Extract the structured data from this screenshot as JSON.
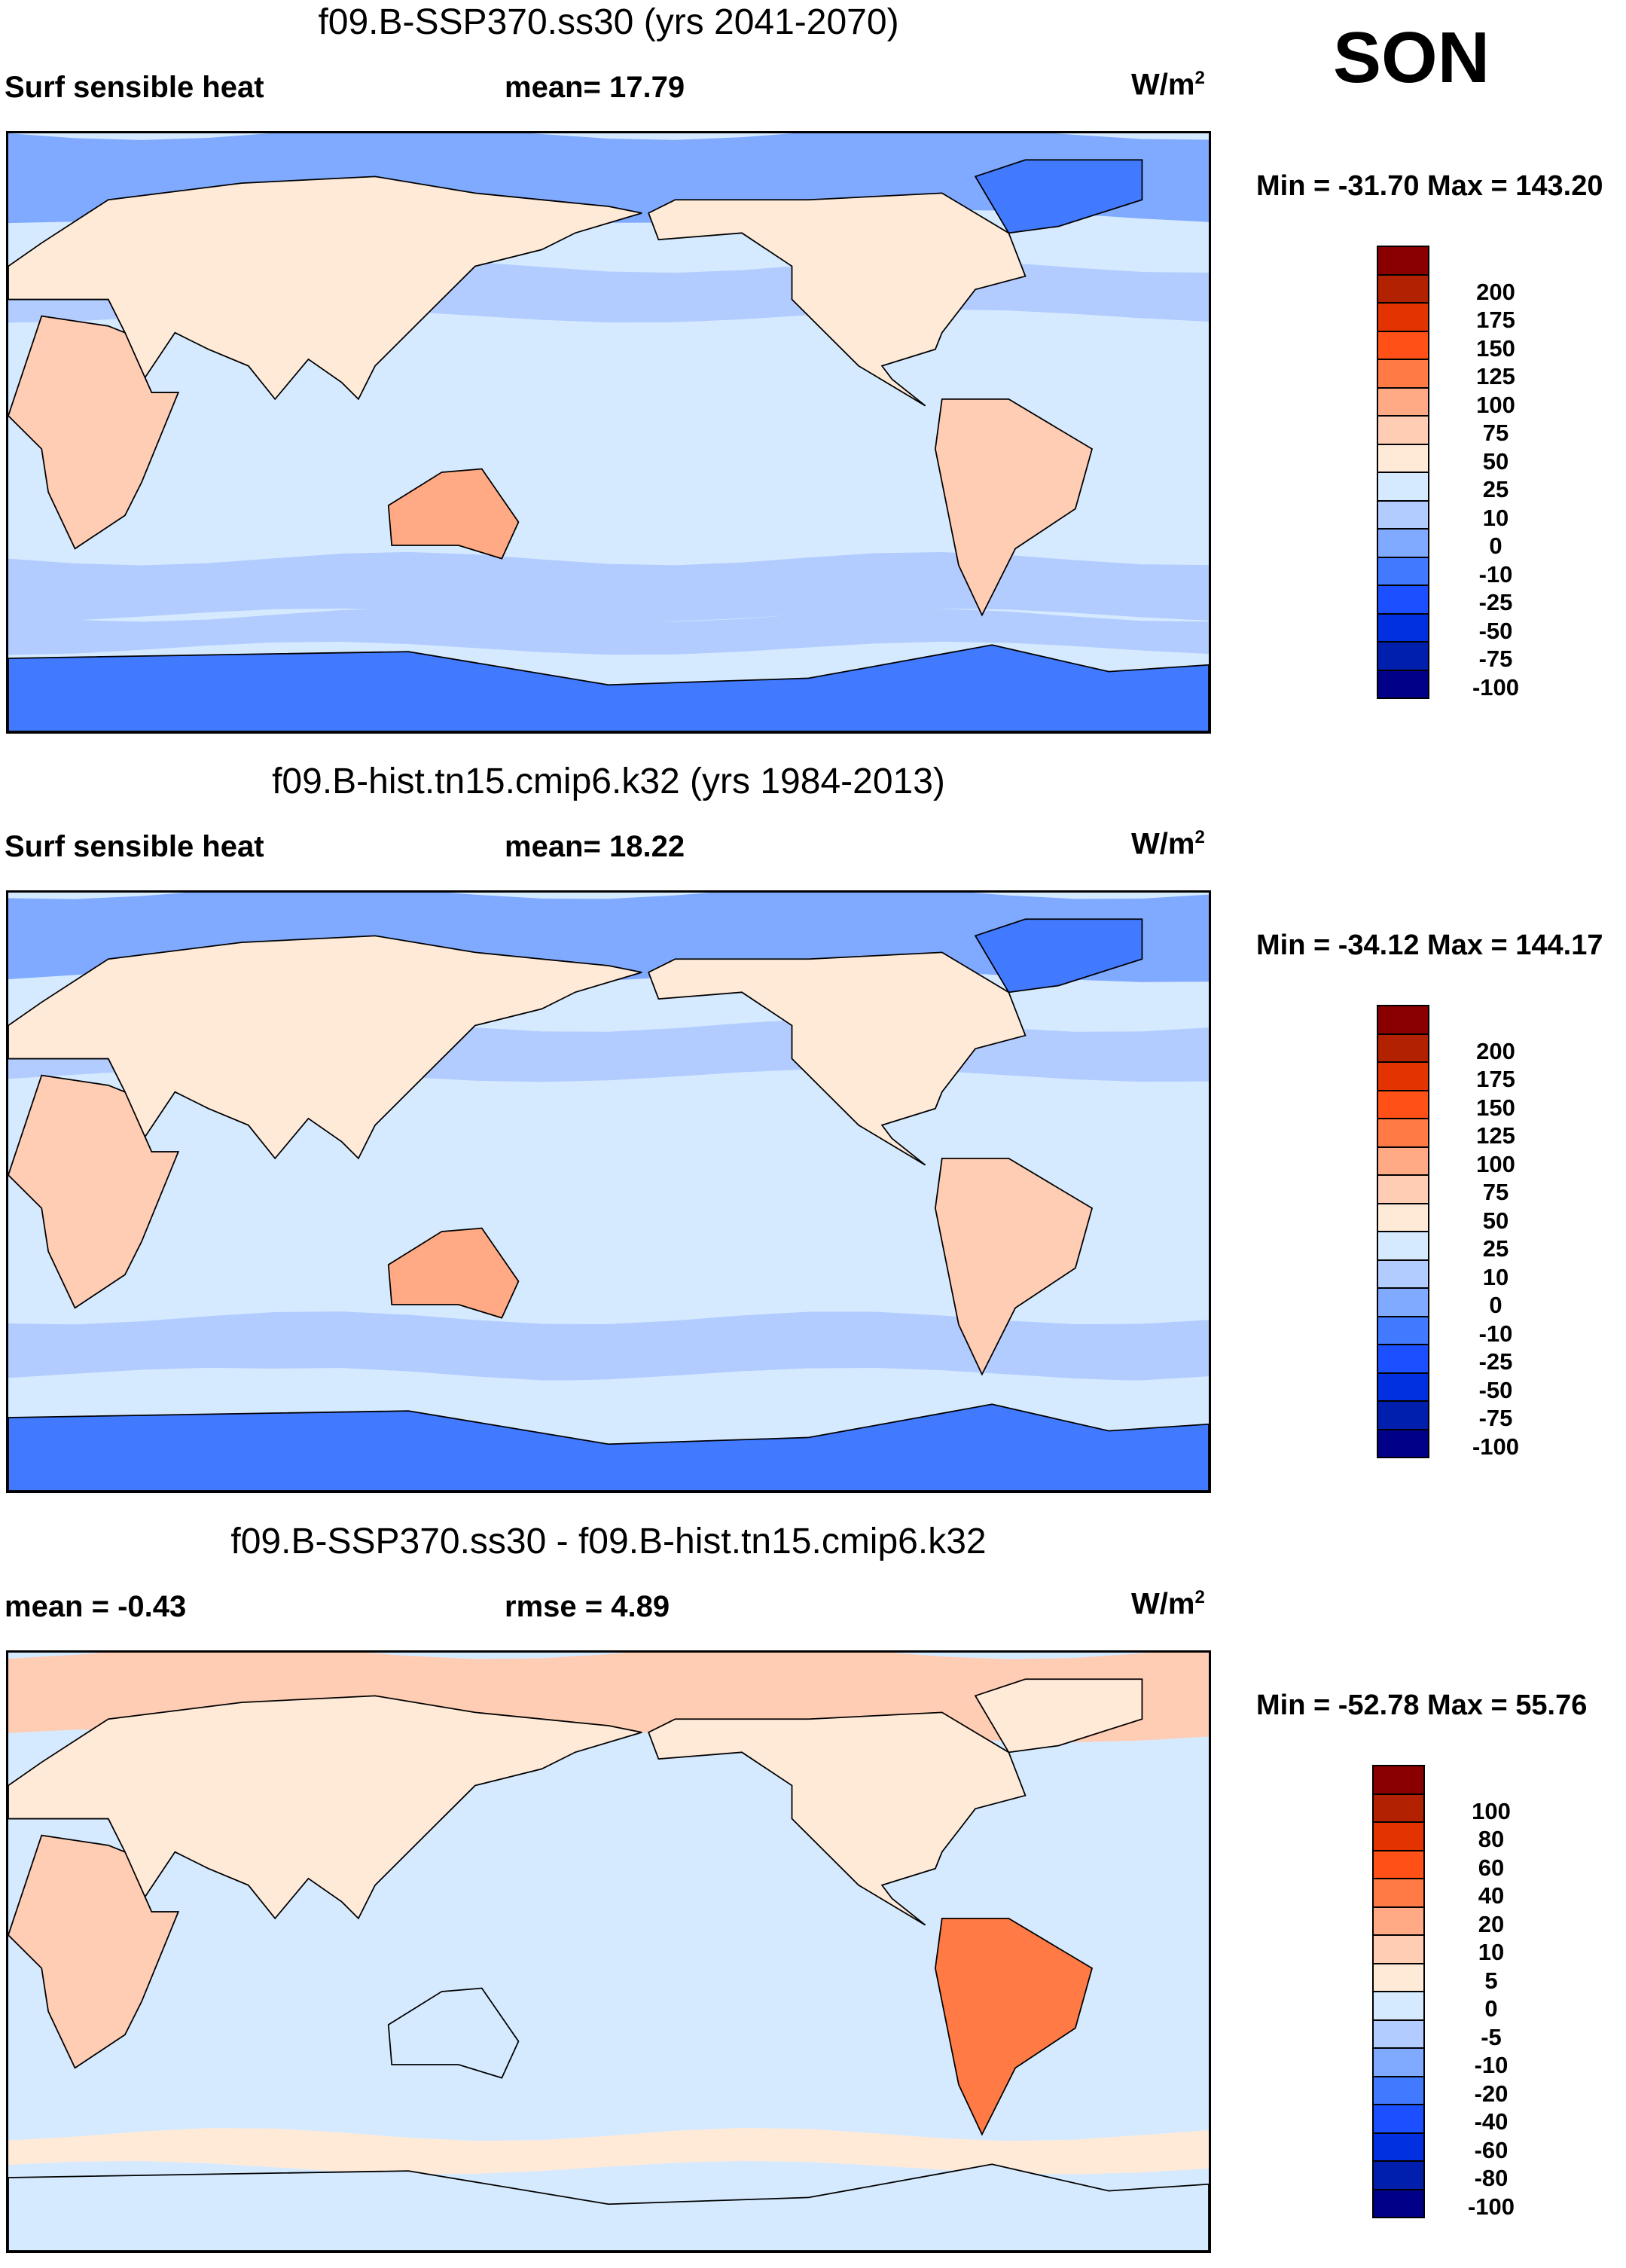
{
  "season": "SON",
  "colors": [
    "#8a0000",
    "#b32200",
    "#e23300",
    "#ff5018",
    "#ff7a45",
    "#ffaa85",
    "#ffccb4",
    "#ffead8",
    "#d6eaff",
    "#b3ccff",
    "#80aaff",
    "#4179ff",
    "#1b4fff",
    "#0030e0",
    "#001fad",
    "#000088"
  ],
  "panels": [
    {
      "title": "f09.B-SSP370.ss30 (yrs 2041-2070)",
      "left": "Surf sensible heat",
      "center": "mean=  17.79",
      "units": "W/m",
      "units_sup": "2",
      "minmax": "Min = -31.70 Max = 143.20",
      "levels": [
        "200",
        "175",
        "150",
        "125",
        "100",
        "75",
        "50",
        "25",
        "10",
        "0",
        "-10",
        "-25",
        "-50",
        "-75",
        "-100"
      ],
      "region_values": {
        "ocean": 15,
        "band_n": 5,
        "band_s": 5,
        "arctic": -5,
        "southern_ocean": 5,
        "antarctica": -15,
        "greenland": -15,
        "eurasia": 30,
        "africa": 60,
        "australia": 90,
        "north_america": 30,
        "south_america": 70
      }
    },
    {
      "title": "f09.B-hist.tn15.cmip6.k32 (yrs 1984-2013)",
      "left": "Surf sensible heat",
      "center": "mean=  18.22",
      "units": "W/m",
      "units_sup": "2",
      "minmax": "Min = -34.12 Max = 144.17",
      "levels": [
        "200",
        "175",
        "150",
        "125",
        "100",
        "75",
        "50",
        "25",
        "10",
        "0",
        "-10",
        "-25",
        "-50",
        "-75",
        "-100"
      ],
      "region_values": {
        "ocean": 15,
        "band_n": 5,
        "band_s": 5,
        "arctic": -5,
        "southern_ocean": 15,
        "antarctica": -15,
        "greenland": -15,
        "eurasia": 30,
        "africa": 60,
        "australia": 90,
        "north_america": 30,
        "south_america": 60
      }
    },
    {
      "title": "f09.B-SSP370.ss30 - f09.B-hist.tn15.cmip6.k32",
      "left": "mean =  -0.43",
      "center": "rmse =    4.89",
      "units": "W/m",
      "units_sup": "2",
      "minmax": "Min = -52.78 Max =  55.76",
      "levels": [
        "100",
        "80",
        "60",
        "40",
        "20",
        "10",
        "5",
        "0",
        "-5",
        "-10",
        "-20",
        "-40",
        "-60",
        "-80",
        "-100"
      ],
      "region_values": {
        "ocean": -2,
        "band_n": -2,
        "band_s": -2,
        "arctic": 7,
        "southern_ocean": 2,
        "antarctica": -2,
        "greenland": 2,
        "eurasia": 2,
        "africa": 7,
        "australia": -2,
        "north_america": 2,
        "south_america": 25
      }
    }
  ],
  "chart_data": {
    "type": "heatmap",
    "season": "SON",
    "variable": "Surf sensible heat",
    "units": "W/m2",
    "maps": [
      {
        "title": "f09.B-SSP370.ss30 (yrs 2041-2070)",
        "mean": 17.79,
        "min": -31.7,
        "max": 143.2,
        "contour_levels": [
          -100,
          -75,
          -50,
          -25,
          -10,
          0,
          10,
          25,
          50,
          75,
          100,
          125,
          150,
          175,
          200
        ]
      },
      {
        "title": "f09.B-hist.tn15.cmip6.k32 (yrs 1984-2013)",
        "mean": 18.22,
        "min": -34.12,
        "max": 144.17,
        "contour_levels": [
          -100,
          -75,
          -50,
          -25,
          -10,
          0,
          10,
          25,
          50,
          75,
          100,
          125,
          150,
          175,
          200
        ]
      },
      {
        "title": "f09.B-SSP370.ss30 - f09.B-hist.tn15.cmip6.k32",
        "mean": -0.43,
        "rmse": 4.89,
        "min": -52.78,
        "max": 55.76,
        "contour_levels": [
          -100,
          -80,
          -60,
          -40,
          -20,
          -10,
          -5,
          0,
          5,
          10,
          20,
          40,
          60,
          80,
          100
        ]
      }
    ]
  }
}
